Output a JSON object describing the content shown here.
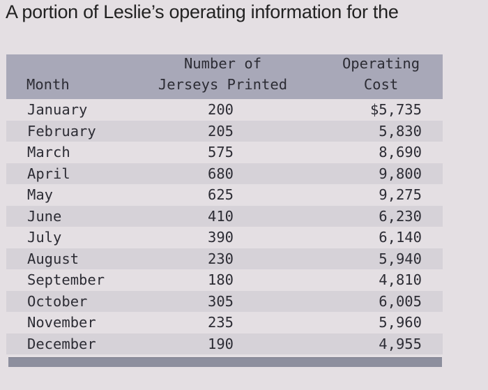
{
  "intro": {
    "text": "A portion of Leslie’s operating information for the"
  },
  "table": {
    "headers": {
      "month": "Month",
      "jerseys_line1": "Number of",
      "jerseys_line2": "Jerseys Printed",
      "cost_line1": "Operating",
      "cost_line2": "Cost"
    },
    "rows": [
      {
        "month": "January",
        "jerseys": "200",
        "cost": "$5,735"
      },
      {
        "month": "February",
        "jerseys": "205",
        "cost": "5,830"
      },
      {
        "month": "March",
        "jerseys": "575",
        "cost": "8,690"
      },
      {
        "month": "April",
        "jerseys": "680",
        "cost": "9,800"
      },
      {
        "month": "May",
        "jerseys": "625",
        "cost": "9,275"
      },
      {
        "month": "June",
        "jerseys": "410",
        "cost": "6,230"
      },
      {
        "month": "July",
        "jerseys": "390",
        "cost": "6,140"
      },
      {
        "month": "August",
        "jerseys": "230",
        "cost": "5,940"
      },
      {
        "month": "September",
        "jerseys": "180",
        "cost": "4,810"
      },
      {
        "month": "October",
        "jerseys": "305",
        "cost": "6,005"
      },
      {
        "month": "November",
        "jerseys": "235",
        "cost": "5,960"
      },
      {
        "month": "December",
        "jerseys": "190",
        "cost": "4,955"
      }
    ]
  },
  "colors": {
    "header_bg": "#a8a8b8",
    "alt_row_bg": "#d6d2d8",
    "page_bg": "#e4dfe3",
    "footer_bar": "#8d8f9e"
  }
}
